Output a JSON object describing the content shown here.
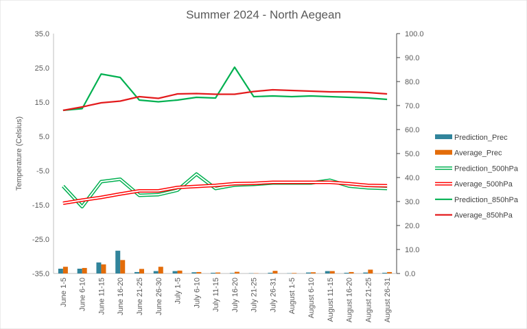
{
  "chart_data": {
    "type": "bar+line",
    "title": "Summer 2024 - North Aegean",
    "ylabel": "Temperature (Celsius)",
    "y2label": "",
    "categories": [
      "June 1-5",
      "June 6-10",
      "June 11-15",
      "June 16-20",
      "June 21-25",
      "June 26-30",
      "July 1-5",
      "July 6-10",
      "July 11-15",
      "July 16-20",
      "July 21-25",
      "July 26-31",
      "August 1-5",
      "August 6-10",
      "August 11-15",
      "August 16-20",
      "August 21-25",
      "August 26-31"
    ],
    "ylim": [
      -35,
      35
    ],
    "yticks": [
      "35.0",
      "25.0",
      "15.0",
      "5.0",
      "-5.0",
      "-15.0",
      "-25.0",
      "-35.0"
    ],
    "y2lim": [
      0,
      100
    ],
    "y2ticks": [
      "100.0",
      "90.0",
      "80.0",
      "70.0",
      "60.0",
      "50.0",
      "40.0",
      "30.0",
      "20.0",
      "10.0",
      "0.0"
    ],
    "grid": false,
    "legend_position": "right",
    "bar_series": [
      {
        "name": "Prediction_Prec",
        "color": "#31849B",
        "axis": "right",
        "values": [
          2.0,
          2.0,
          4.6,
          9.5,
          0.6,
          1.0,
          1.0,
          0.5,
          0.3,
          0.2,
          0.1,
          0.3,
          0.1,
          0.4,
          1.0,
          0.3,
          0.4,
          0.3
        ]
      },
      {
        "name": "Average_Prec",
        "color": "#E36C09",
        "axis": "right",
        "values": [
          2.8,
          2.3,
          3.8,
          5.6,
          1.9,
          2.8,
          1.2,
          0.6,
          0.4,
          0.7,
          0.1,
          1.1,
          0.2,
          0.5,
          1.0,
          0.6,
          1.6,
          0.6
        ]
      }
    ],
    "line_series": [
      {
        "name": "Prediction_500hPa",
        "color": "#00B050",
        "style": "double",
        "axis": "left",
        "values": [
          -9.5,
          -15.5,
          -8.2,
          -7.5,
          -12.2,
          -12.0,
          -10.7,
          -6.0,
          -10.2,
          -9.2,
          -9.0,
          -8.6,
          -8.6,
          -8.6,
          -7.8,
          -9.5,
          -10.0,
          -10.2
        ]
      },
      {
        "name": "Average_500hPa",
        "color": "#FF0000",
        "style": "double",
        "axis": "left",
        "values": [
          -14.5,
          -13.6,
          -12.8,
          -11.8,
          -10.9,
          -10.9,
          -9.9,
          -9.6,
          -9.3,
          -8.8,
          -8.7,
          -8.4,
          -8.4,
          -8.4,
          -8.4,
          -8.8,
          -9.3,
          -9.4
        ]
      },
      {
        "name": "Prediction_850hPa",
        "color": "#00B050",
        "style": "solid",
        "axis": "left",
        "values": [
          12.6,
          13.1,
          23.2,
          22.2,
          15.6,
          15.1,
          15.6,
          16.4,
          16.2,
          25.2,
          16.6,
          16.8,
          16.6,
          16.8,
          16.6,
          16.4,
          16.2,
          15.8
        ]
      },
      {
        "name": "Average_850hPa",
        "color": "#E31A1C",
        "style": "solid",
        "axis": "left",
        "values": [
          12.6,
          13.6,
          14.8,
          15.3,
          16.6,
          16.1,
          17.4,
          17.5,
          17.3,
          17.3,
          18.1,
          18.6,
          18.4,
          18.2,
          18.0,
          18.0,
          17.8,
          17.4
        ]
      }
    ]
  }
}
